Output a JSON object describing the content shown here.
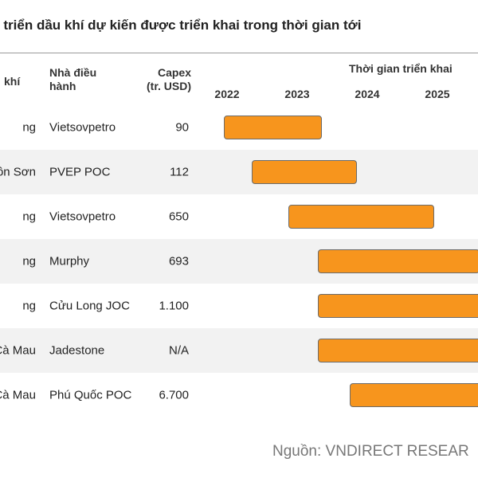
{
  "title": "t triển dầu khí dự kiến được triển khai trong thời gian tới",
  "headers": {
    "field": "khí",
    "operator_line1": "Nhà điều",
    "operator_line2": "hành",
    "capex_line1": "Capex",
    "capex_line2": "(tr. USD)",
    "timeline": "Thời gian triển khai"
  },
  "years": [
    "2022",
    "2023",
    "2024",
    "2025"
  ],
  "rows": [
    {
      "field": "ng",
      "operator": "Vietsovpetro",
      "capex": "90",
      "start": 2021.95,
      "end": 2023.35
    },
    {
      "field": "ôn Sơn",
      "operator": "PVEP POC",
      "capex": "112",
      "start": 2022.35,
      "end": 2023.85
    },
    {
      "field": "ng",
      "operator": "Vietsovpetro",
      "capex": "650",
      "start": 2022.88,
      "end": 2024.95
    },
    {
      "field": "ng",
      "operator": "Murphy",
      "capex": "693",
      "start": 2023.3,
      "end": 2025.6
    },
    {
      "field": "ng",
      "operator": "Cửu Long JOC",
      "capex": "1.100",
      "start": 2023.3,
      "end": 2025.8
    },
    {
      "field": "Cà Mau",
      "operator": "Jadestone",
      "capex": "N/A",
      "start": 2023.3,
      "end": 2025.8
    },
    {
      "field": "Cà Mau",
      "operator": "Phú Quốc POC",
      "capex": "6.700",
      "start": 2023.75,
      "end": 2025.8
    }
  ],
  "source": "Nguồn: VNDIRECT RESEAR",
  "colors": {
    "bar": "#f7951d",
    "bar_border": "#6b6b6b",
    "shade": "#f2f2f2"
  }
}
